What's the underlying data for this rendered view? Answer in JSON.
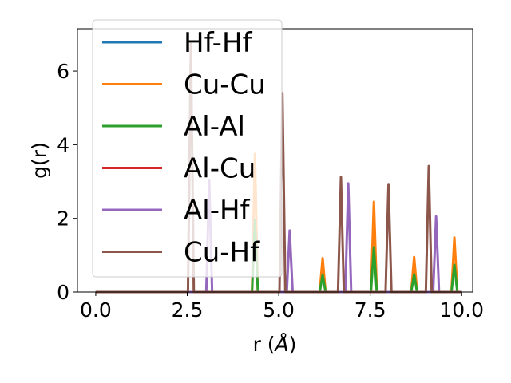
{
  "chart_data": {
    "type": "line",
    "xlabel": "r",
    "xlabel_unit": "Å",
    "ylabel": "g(r)",
    "xlim": [
      -0.5,
      10.3
    ],
    "ylim": [
      0,
      7.15
    ],
    "xticks": [
      "0.0",
      "2.5",
      "5.0",
      "7.5",
      "10.0"
    ],
    "yticks": [
      "0",
      "2",
      "4",
      "6"
    ],
    "grid": false,
    "legend_position": "top-left",
    "series": [
      {
        "name": "Hf-Hf",
        "color": "#1f77b4",
        "peaks": []
      },
      {
        "name": "Cu-Cu",
        "color": "#ff7f0e",
        "peaks": [
          [
            4.35,
            3.75
          ],
          [
            6.2,
            0.92
          ],
          [
            7.6,
            2.45
          ],
          [
            8.7,
            0.95
          ],
          [
            9.8,
            1.48
          ]
        ]
      },
      {
        "name": "Al-Al",
        "color": "#2ca02c",
        "peaks": [
          [
            4.35,
            1.95
          ],
          [
            6.2,
            0.46
          ],
          [
            7.6,
            1.22
          ],
          [
            8.7,
            0.48
          ],
          [
            9.8,
            0.74
          ]
        ]
      },
      {
        "name": "Al-Cu",
        "color": "#d62728",
        "peaks": []
      },
      {
        "name": "Al-Hf",
        "color": "#9467bd",
        "peaks": [
          [
            3.1,
            3.05
          ],
          [
            5.3,
            1.67
          ],
          [
            6.9,
            2.95
          ],
          [
            9.3,
            2.05
          ]
        ]
      },
      {
        "name": "Cu-Hf",
        "color": "#8c564b",
        "peaks": [
          [
            2.6,
            6.8
          ],
          [
            5.1,
            5.4
          ],
          [
            6.7,
            3.12
          ],
          [
            8.0,
            2.93
          ],
          [
            9.1,
            3.42
          ]
        ]
      }
    ]
  }
}
